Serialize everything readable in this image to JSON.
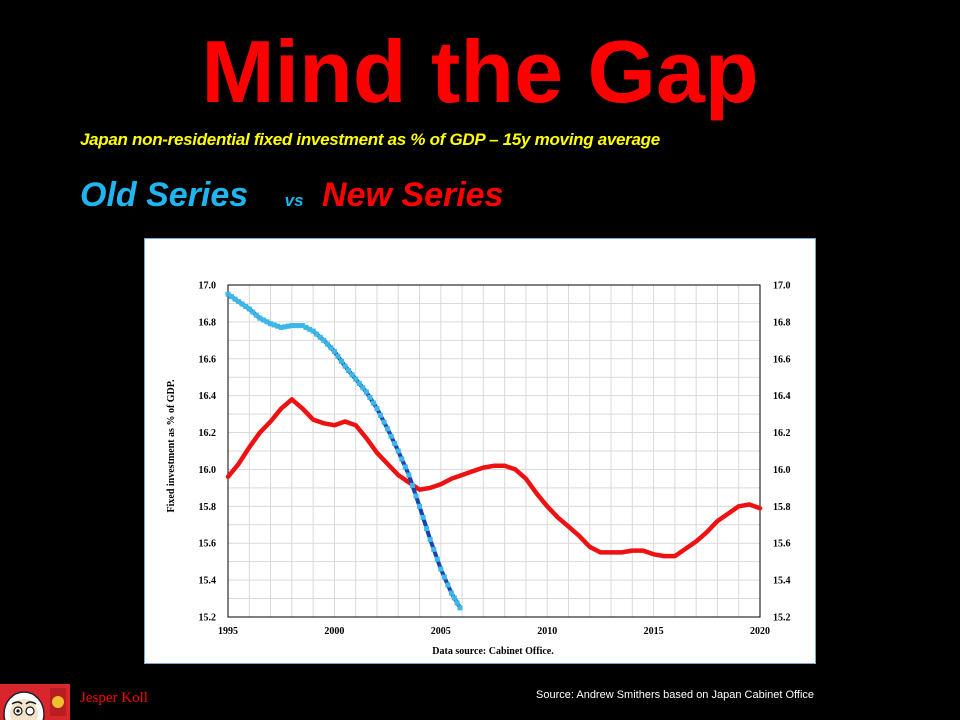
{
  "slide": {
    "title": "Mind the Gap",
    "subtitle": "Japan non-residential fixed investment as % of GDP – 15y moving average",
    "old_label": "Old Series",
    "vs_label": "vs",
    "new_label": "New Series",
    "author": "Jesper Koll",
    "source": "Source: Andrew Smithers based on Japan Cabinet Office"
  },
  "chart_data": {
    "type": "line",
    "title": "",
    "xlabel": "Data source: Cabinet Office.",
    "ylabel": "Fixed investment as % of GDP.",
    "xlim": [
      1995,
      2020
    ],
    "ylim": [
      15.2,
      17.0
    ],
    "x_ticks": [
      "1995",
      "2000",
      "2005",
      "2010",
      "2015",
      "2020"
    ],
    "y_ticks": [
      "17.0",
      "16.8",
      "16.6",
      "16.4",
      "16.2",
      "16.0",
      "15.8",
      "15.6",
      "15.4",
      "15.2"
    ],
    "grid": true,
    "colors": {
      "old_light": "#3cb8e8",
      "old_dark": "#1a3fb0",
      "new": "#ee1111"
    },
    "series": [
      {
        "name": "Old Series",
        "x": [
          1995.0,
          1995.5,
          1996.0,
          1996.5,
          1997.0,
          1997.5,
          1998.0,
          1998.5,
          1999.0,
          1999.5,
          2000.0,
          2000.5,
          2001.0,
          2001.5,
          2002.0,
          2002.5,
          2003.0,
          2003.5,
          2004.0,
          2004.5,
          2005.0,
          2005.5,
          2005.9
        ],
        "values": [
          16.95,
          16.91,
          16.87,
          16.82,
          16.79,
          16.77,
          16.78,
          16.78,
          16.75,
          16.7,
          16.64,
          16.56,
          16.49,
          16.42,
          16.33,
          16.22,
          16.1,
          15.97,
          15.8,
          15.62,
          15.46,
          15.33,
          15.25
        ]
      },
      {
        "name": "New Series",
        "x": [
          1995.0,
          1995.5,
          1996.0,
          1996.5,
          1997.0,
          1997.5,
          1998.0,
          1998.5,
          1999.0,
          1999.5,
          2000.0,
          2000.5,
          2001.0,
          2001.5,
          2002.0,
          2002.5,
          2003.0,
          2003.5,
          2004.0,
          2004.5,
          2005.0,
          2005.5,
          2006.0,
          2006.5,
          2007.0,
          2007.5,
          2008.0,
          2008.5,
          2009.0,
          2009.5,
          2010.0,
          2010.5,
          2011.0,
          2011.5,
          2012.0,
          2012.5,
          2013.0,
          2013.5,
          2014.0,
          2014.5,
          2015.0,
          2015.5,
          2016.0,
          2016.5,
          2017.0,
          2017.5,
          2018.0,
          2018.5,
          2019.0,
          2019.5,
          2020.0
        ],
        "values": [
          15.96,
          16.03,
          16.12,
          16.2,
          16.26,
          16.33,
          16.38,
          16.33,
          16.27,
          16.25,
          16.24,
          16.26,
          16.24,
          16.17,
          16.09,
          16.03,
          15.97,
          15.93,
          15.89,
          15.9,
          15.92,
          15.95,
          15.97,
          15.99,
          16.01,
          16.02,
          16.02,
          16.0,
          15.95,
          15.87,
          15.8,
          15.74,
          15.69,
          15.64,
          15.58,
          15.55,
          15.55,
          15.55,
          15.56,
          15.56,
          15.54,
          15.53,
          15.53,
          15.57,
          15.61,
          15.66,
          15.72,
          15.76,
          15.8,
          15.81,
          15.79
        ]
      }
    ]
  }
}
